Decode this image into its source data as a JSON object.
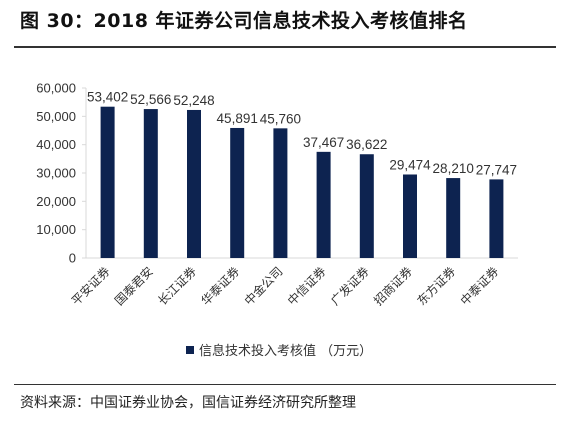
{
  "figure": {
    "title": "图 30：2018 年证券公司信息技术投入考核值排名",
    "source": "资料来源：中国证券业协会，国信证券经济研究所整理"
  },
  "chart_data": {
    "type": "bar",
    "categories": [
      "平安证券",
      "国泰君安",
      "长江证券",
      "华泰证券",
      "中金公司",
      "中信证券",
      "广发证券",
      "招商证券",
      "东方证券",
      "中泰证券"
    ],
    "series": [
      {
        "name": "信息技术投入考核值 （万元）",
        "values": [
          53402,
          52566,
          52248,
          45891,
          45760,
          37467,
          36622,
          29474,
          28210,
          27747
        ],
        "color": "#0d2350"
      }
    ],
    "data_labels": [
      "53,402",
      "52,566",
      "52,248",
      "45,891",
      "45,760",
      "37,467",
      "36,622",
      "29,474",
      "28,210",
      "27,747"
    ],
    "ytick_labels": [
      "0",
      "10,000",
      "20,000",
      "30,000",
      "40,000",
      "50,000",
      "60,000"
    ],
    "ylim": [
      0,
      60000
    ],
    "grid": false,
    "legend_position": "bottom",
    "axis_color": "#d9d9d9"
  }
}
